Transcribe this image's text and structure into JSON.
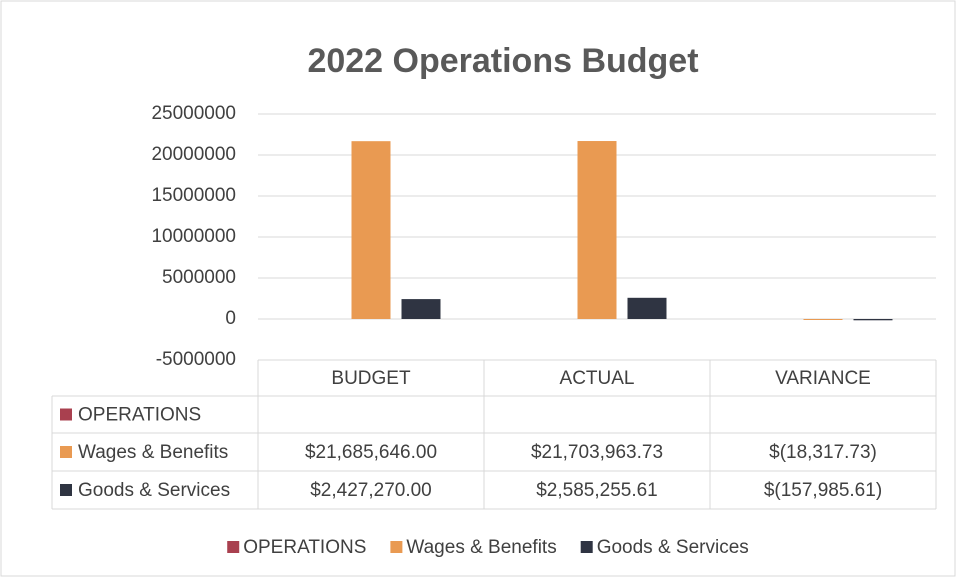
{
  "chart_data": {
    "type": "bar",
    "title": "2022 Operations Budget",
    "categories": [
      "BUDGET",
      "ACTUAL",
      "VARIANCE"
    ],
    "series": [
      {
        "name": "OPERATIONS",
        "color": "#a9404f",
        "values": [
          null,
          null,
          null
        ]
      },
      {
        "name": "Wages & Benefits",
        "color": "#e99a52",
        "values": [
          21685646.0,
          21703963.73,
          -18317.73
        ],
        "value_labels": [
          "$21,685,646.00",
          "$21,703,963.73",
          "$(18,317.73)"
        ]
      },
      {
        "name": "Goods & Services",
        "color": "#2f3442",
        "values": [
          2427270.0,
          2585255.61,
          -157985.61
        ],
        "value_labels": [
          "$2,427,270.00",
          "$2,585,255.61",
          "$(157,985.61)"
        ]
      }
    ],
    "ylim": [
      -5000000,
      25000000
    ],
    "yticks": [
      -5000000,
      0,
      5000000,
      10000000,
      15000000,
      20000000,
      25000000
    ],
    "grid": true,
    "legend": "bottom"
  }
}
